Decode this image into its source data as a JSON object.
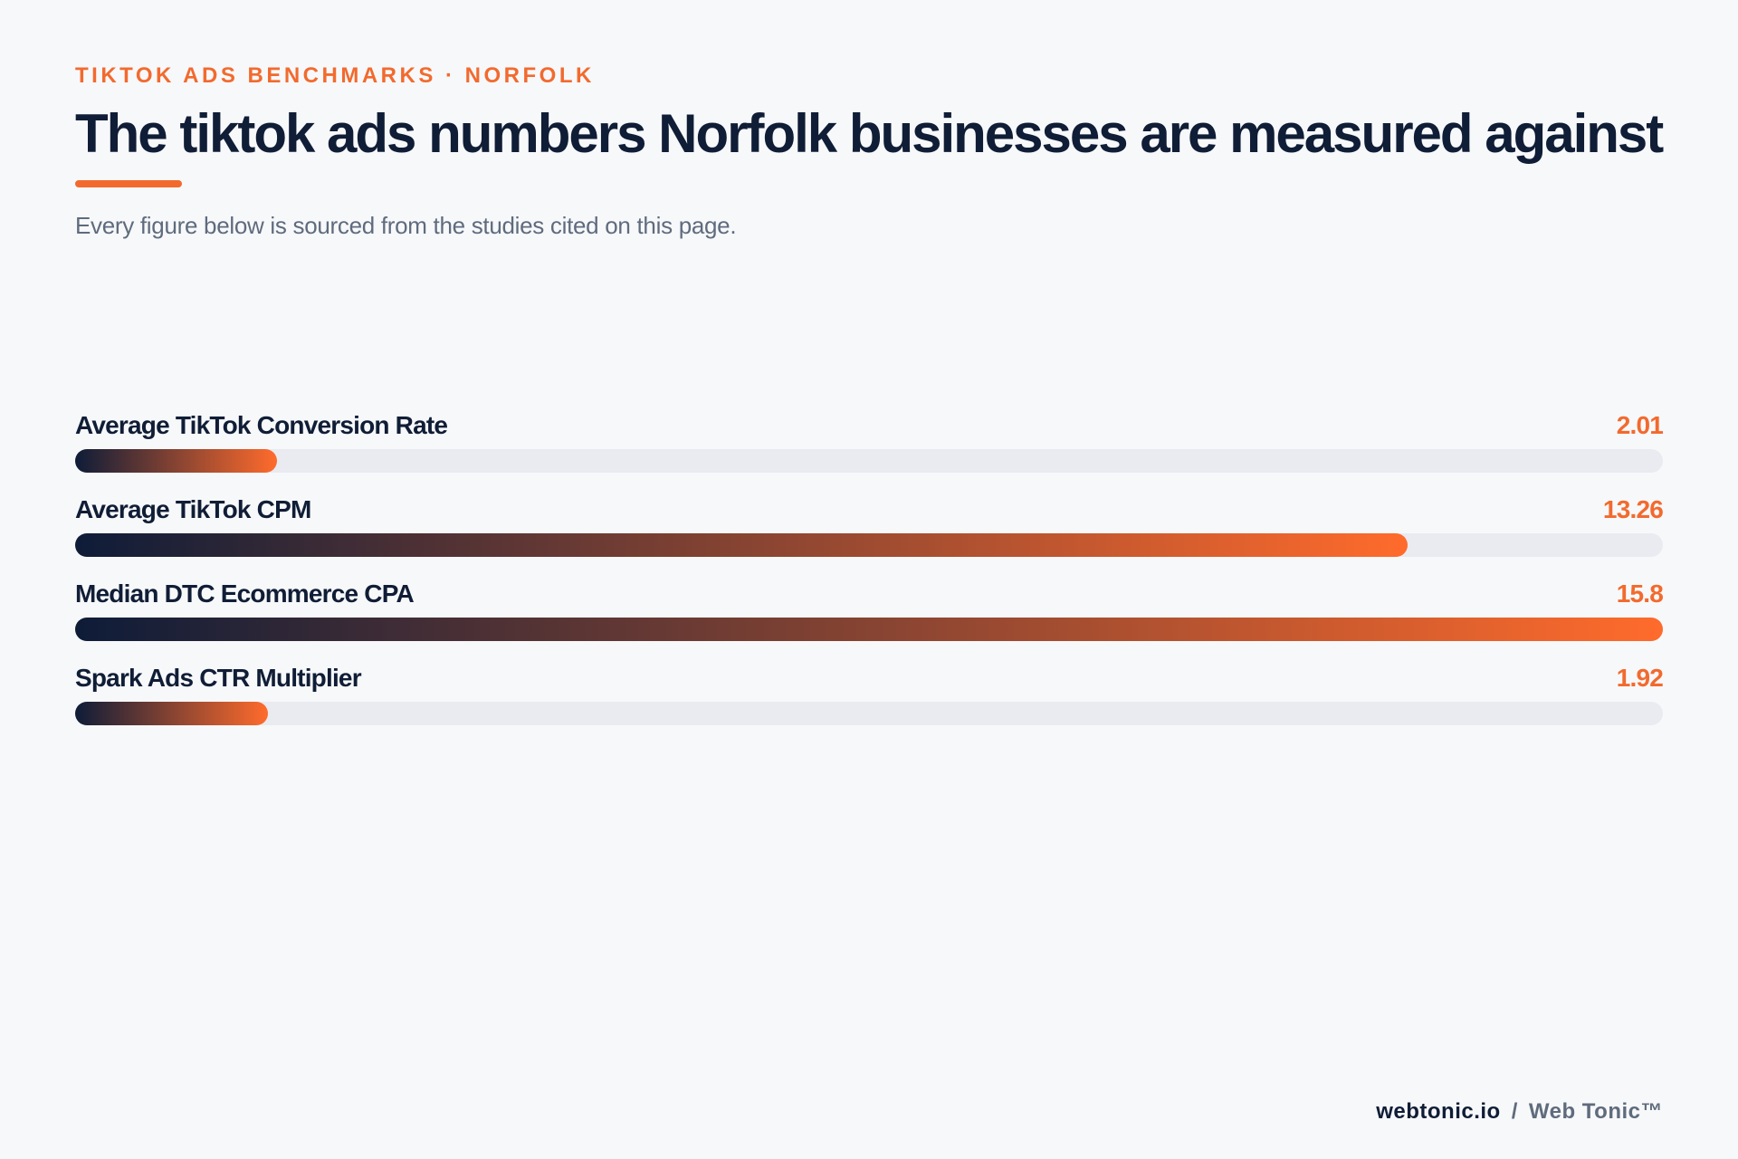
{
  "header": {
    "kicker": "TIKTOK ADS BENCHMARKS · NORFOLK",
    "title": "The tiktok ads numbers Norfolk businesses are measured against",
    "subtitle": "Every figure below is sourced from the studies cited on this page."
  },
  "chart_data": {
    "type": "bar",
    "orientation": "horizontal",
    "categories": [
      "Average TikTok Conversion Rate",
      "Average TikTok CPM",
      "Median DTC Ecommerce CPA",
      "Spark Ads CTR Multiplier"
    ],
    "values": [
      2.01,
      13.26,
      15.8,
      1.92
    ],
    "value_labels": [
      "2.01",
      "13.26",
      "15.8",
      "1.92"
    ],
    "xlim": [
      0,
      15.8
    ],
    "grid": false,
    "legend": "none",
    "colors": {
      "bar_start": "#0e1c38",
      "bar_end": "#ff6b2c",
      "track": "#e9ebf1",
      "value_text": "#f26a2e"
    }
  },
  "footer": {
    "site": "webtonic.io",
    "separator": "/",
    "brand": "Web Tonic™"
  }
}
